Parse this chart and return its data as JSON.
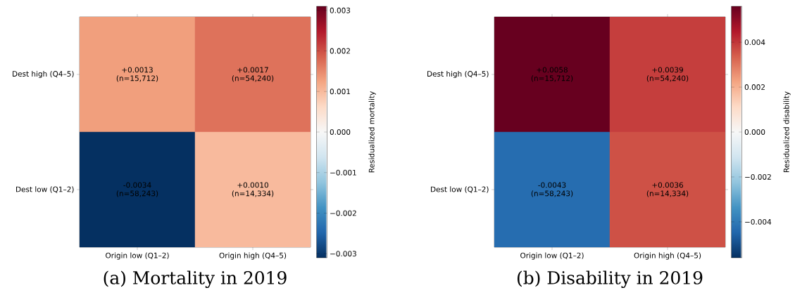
{
  "chart_data": [
    {
      "type": "heatmap",
      "title": "(a) Mortality in 2019",
      "categories": [
        "Origin low (Q1–2)",
        "Origin high (Q4–5)"
      ],
      "y_categories": [
        "Dest high (Q4–5)",
        "Dest low (Q1–2)"
      ],
      "cells": [
        [
          0.0013,
          0.0017
        ],
        [
          -0.0034,
          0.001
        ]
      ],
      "cell_labels": [
        [
          "+0.0013 (n=15,712)",
          "+0.0017 (n=54,240)"
        ],
        [
          "-0.0034 (n=58,243)",
          "+0.0010 (n=14,334)"
        ]
      ],
      "clabel": "Residualized mortality",
      "clim": [
        -0.0031,
        0.0031
      ],
      "cticks": [
        {
          "value": -0.003,
          "label": "−0.003"
        },
        {
          "value": -0.002,
          "label": "−0.002"
        },
        {
          "value": -0.001,
          "label": "−0.001"
        },
        {
          "value": 0,
          "label": "0.000"
        },
        {
          "value": 0.001,
          "label": "0.001"
        },
        {
          "value": 0.002,
          "label": "0.002"
        },
        {
          "value": 0.003,
          "label": "0.003"
        }
      ]
    },
    {
      "type": "heatmap",
      "title": "(b) Disability in 2019",
      "categories": [
        "Origin low (Q1–2)",
        "Origin high (Q4–5)"
      ],
      "y_categories": [
        "Dest high (Q4–5)",
        "Dest low (Q1–2)"
      ],
      "cells": [
        [
          0.0058,
          0.0039
        ],
        [
          -0.0043,
          0.0036
        ]
      ],
      "cell_labels": [
        [
          "+0.0058 (n=15,712)",
          "+0.0039 (n=54,240)"
        ],
        [
          "-0.0043 (n=58,243)",
          "+0.0036 (n=14,334)"
        ]
      ],
      "clabel": "Residualized disability",
      "clim": [
        -0.0056,
        0.0056
      ],
      "cticks": [
        {
          "value": -0.004,
          "label": "−0.004"
        },
        {
          "value": -0.002,
          "label": "−0.002"
        },
        {
          "value": 0,
          "label": "0.000"
        },
        {
          "value": 0.002,
          "label": "0.002"
        },
        {
          "value": 0.004,
          "label": "0.004"
        }
      ]
    }
  ]
}
